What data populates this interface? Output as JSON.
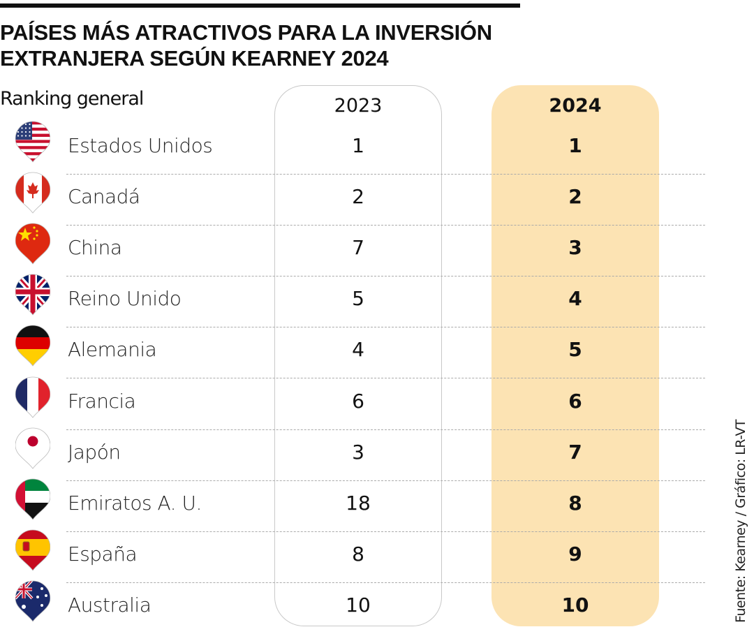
{
  "title_line1": "PAÍSES MÁS ATRACTIVOS PARA LA INVERSIÓN",
  "title_line2": "EXTRANJERA SEGÚN KEARNEY 2024",
  "source": "Fuente: Kearney / Gráfico: LR-VT",
  "colors": {
    "highlight_2024": "#fce3b3",
    "border_2023": "#c8c8c8"
  },
  "chart_data": {
    "type": "table",
    "row_header": "Ranking general",
    "columns": [
      "2023",
      "2024"
    ],
    "rows": [
      {
        "country": "Estados Unidos",
        "flag": "us-flag-icon",
        "r2023": "1",
        "r2024": "1"
      },
      {
        "country": "Canadá",
        "flag": "ca-flag-icon",
        "r2023": "2",
        "r2024": "2"
      },
      {
        "country": "China",
        "flag": "cn-flag-icon",
        "r2023": "7",
        "r2024": "3"
      },
      {
        "country": "Reino Unido",
        "flag": "gb-flag-icon",
        "r2023": "5",
        "r2024": "4"
      },
      {
        "country": "Alemania",
        "flag": "de-flag-icon",
        "r2023": "4",
        "r2024": "5"
      },
      {
        "country": "Francia",
        "flag": "fr-flag-icon",
        "r2023": "6",
        "r2024": "6"
      },
      {
        "country": "Japón",
        "flag": "jp-flag-icon",
        "r2023": "3",
        "r2024": "7"
      },
      {
        "country": "Emiratos A. U.",
        "flag": "ae-flag-icon",
        "r2023": "18",
        "r2024": "8"
      },
      {
        "country": "España",
        "flag": "es-flag-icon",
        "r2023": "8",
        "r2024": "9"
      },
      {
        "country": "Australia",
        "flag": "au-flag-icon",
        "r2023": "10",
        "r2024": "10"
      }
    ]
  }
}
